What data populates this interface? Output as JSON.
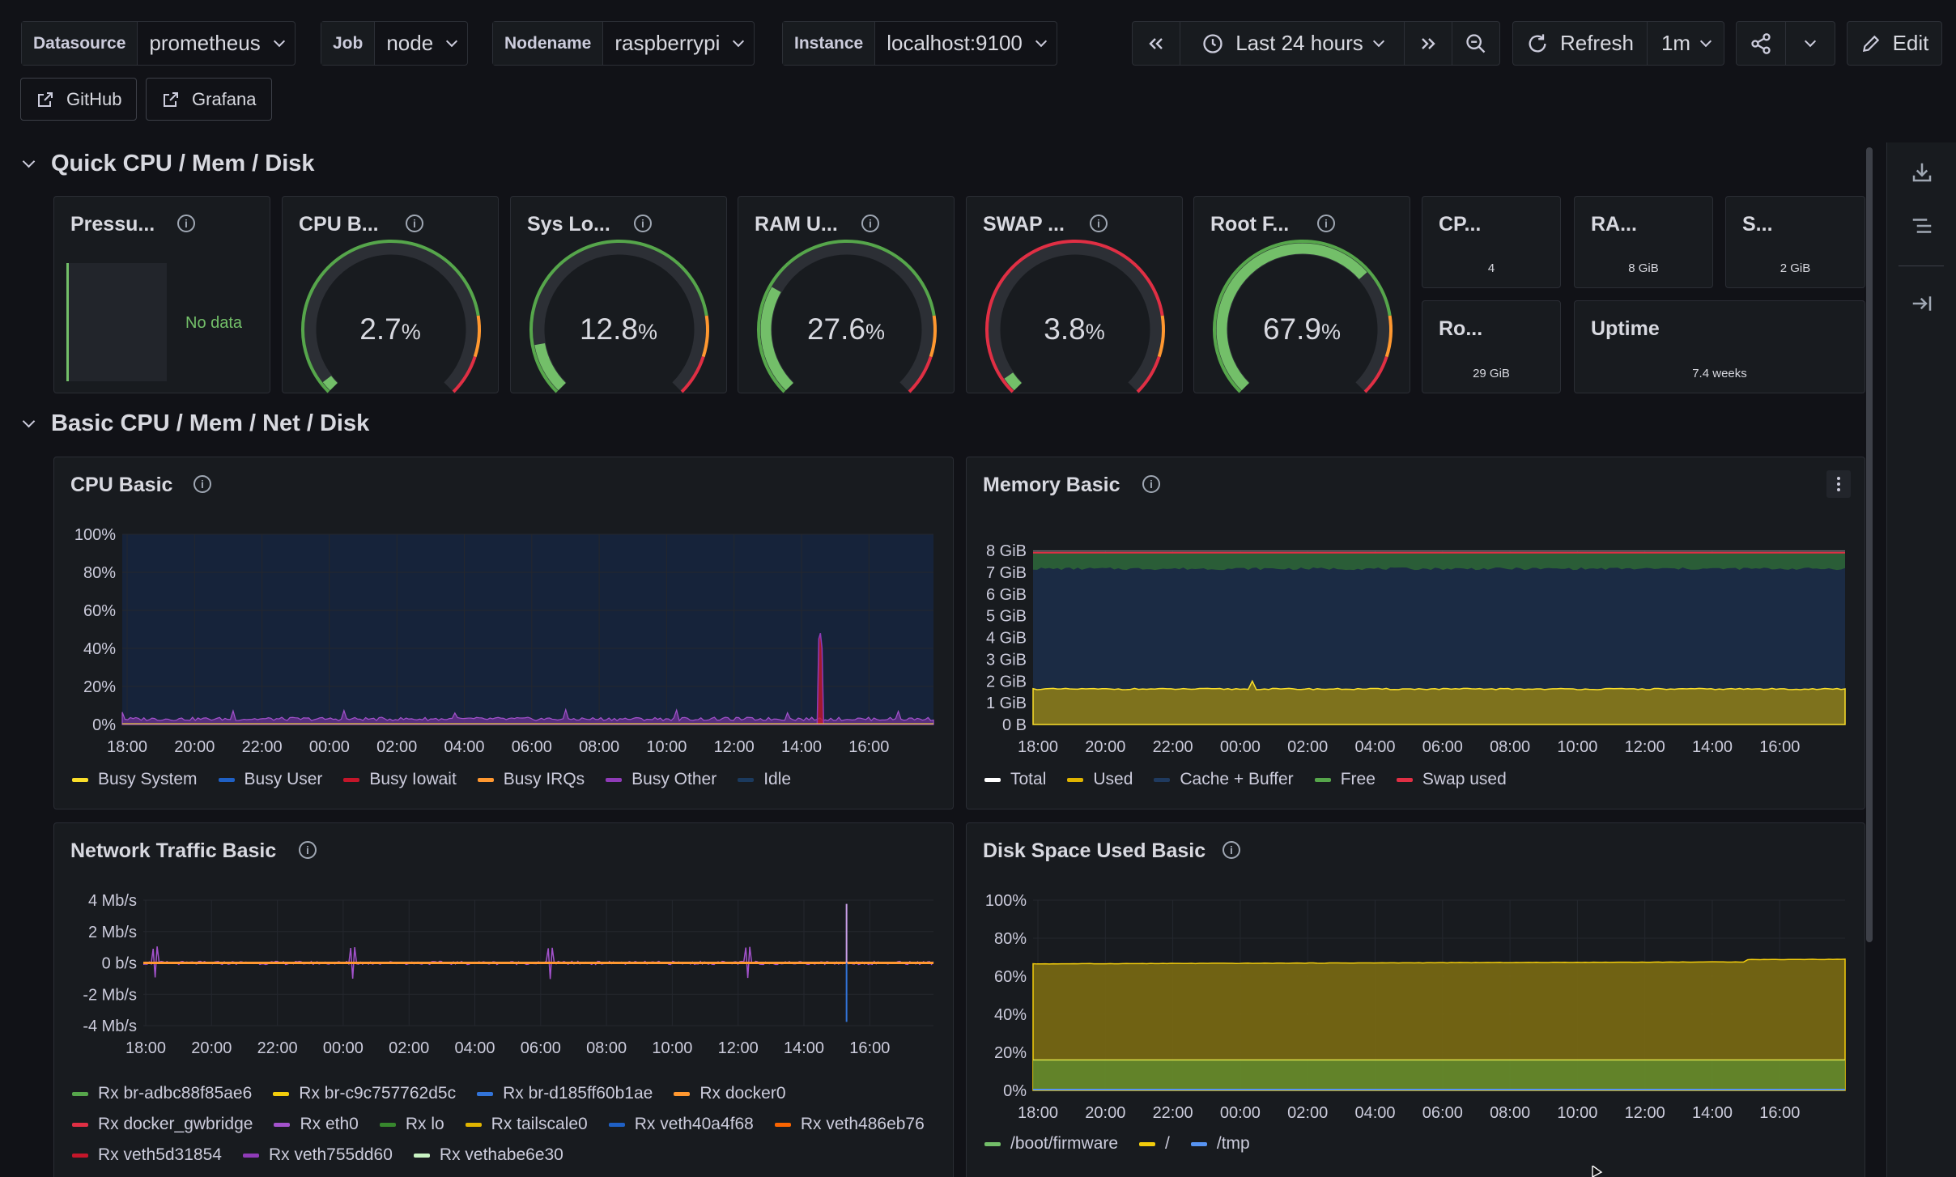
{
  "variables": [
    {
      "label": "Datasource",
      "value": "prometheus"
    },
    {
      "label": "Job",
      "value": "node"
    },
    {
      "label": "Nodename",
      "value": "raspberrypi"
    },
    {
      "label": "Instance",
      "value": "localhost:9100"
    }
  ],
  "toolbar": {
    "time_range": "Last 24 hours",
    "refresh_label": "Refresh",
    "refresh_interval": "1m",
    "edit_label": "Edit"
  },
  "links": [
    {
      "label": "GitHub"
    },
    {
      "label": "Grafana"
    }
  ],
  "rows": {
    "quick": "Quick CPU / Mem / Disk",
    "basic": "Basic CPU / Mem / Net / Disk"
  },
  "quick_panels": {
    "pressure": {
      "title": "Pressu...",
      "no_data": "No data"
    },
    "gauges": [
      {
        "title": "CPU B...",
        "value": "2.7",
        "unit": "%",
        "level": 0.027
      },
      {
        "title": "Sys Lo...",
        "value": "12.8",
        "unit": "%",
        "level": 0.128
      },
      {
        "title": "RAM U...",
        "value": "27.6",
        "unit": "%",
        "level": 0.276
      },
      {
        "title": "SWAP ...",
        "value": "3.8",
        "unit": "%",
        "level": 0.038
      },
      {
        "title": "Root F...",
        "value": "67.9",
        "unit": "%",
        "level": 0.679
      }
    ],
    "stats": [
      {
        "title": "CP...",
        "value": "4"
      },
      {
        "title": "RA...",
        "value": "8 GiB"
      },
      {
        "title": "S...",
        "value": "2 GiB"
      },
      {
        "title": "Ro...",
        "value": "29 GiB"
      },
      {
        "title": "Uptime",
        "value": "7.4 weeks"
      }
    ]
  },
  "panels": {
    "cpu": {
      "title": "CPU Basic"
    },
    "memory": {
      "title": "Memory Basic"
    },
    "network": {
      "title": "Network Traffic Basic"
    },
    "disk": {
      "title": "Disk Space Used Basic"
    }
  },
  "chart_data": [
    {
      "type": "area",
      "title": "CPU Basic",
      "x_ticks": [
        "18:00",
        "20:00",
        "22:00",
        "00:00",
        "02:00",
        "04:00",
        "06:00",
        "08:00",
        "10:00",
        "12:00",
        "14:00",
        "16:00"
      ],
      "y_ticks": [
        "0%",
        "20%",
        "40%",
        "60%",
        "80%",
        "100%"
      ],
      "ylim": [
        0,
        100
      ],
      "series": [
        {
          "name": "Busy System",
          "color": "#fade2a"
        },
        {
          "name": "Busy User",
          "color": "#1f60c4"
        },
        {
          "name": "Busy Iowait",
          "color": "#c4162a"
        },
        {
          "name": "Busy IRQs",
          "color": "#ff9830"
        },
        {
          "name": "Busy Other",
          "color": "#8f3bb8"
        },
        {
          "name": "Idle",
          "color": "#1b3a5e"
        }
      ],
      "spike_time": "15:25",
      "spike_value": 45
    },
    {
      "type": "area",
      "title": "Memory Basic",
      "x_ticks": [
        "18:00",
        "20:00",
        "22:00",
        "00:00",
        "02:00",
        "04:00",
        "06:00",
        "08:00",
        "10:00",
        "12:00",
        "14:00",
        "16:00"
      ],
      "y_ticks": [
        "0 B",
        "1 GiB",
        "2 GiB",
        "3 GiB",
        "4 GiB",
        "5 GiB",
        "6 GiB",
        "7 GiB",
        "8 GiB"
      ],
      "ylim": [
        0,
        8
      ],
      "series": [
        {
          "name": "Total",
          "color": "#ffffff",
          "value": 7.9
        },
        {
          "name": "Used",
          "color": "#e0b400",
          "value": 1.6
        },
        {
          "name": "Cache + Buffer",
          "color": "#1f3a5f",
          "value": 5.4
        },
        {
          "name": "Free",
          "color": "#56a64b",
          "value": 0.8
        },
        {
          "name": "Swap used",
          "color": "#e02f44",
          "value": 0.08
        }
      ]
    },
    {
      "type": "line",
      "title": "Network Traffic Basic",
      "x_ticks": [
        "18:00",
        "20:00",
        "22:00",
        "00:00",
        "02:00",
        "04:00",
        "06:00",
        "08:00",
        "10:00",
        "12:00",
        "14:00",
        "16:00"
      ],
      "y_ticks": [
        "-4 Mb/s",
        "-2 Mb/s",
        "0 b/s",
        "2 Mb/s",
        "4 Mb/s"
      ],
      "ylim": [
        -5,
        5
      ],
      "series": [
        {
          "name": "Rx br-adbc88f85ae6",
          "color": "#56a64b"
        },
        {
          "name": "Rx br-c9c757762d5c",
          "color": "#f2cc0c"
        },
        {
          "name": "Rx br-d185ff60b1ae",
          "color": "#3274d9"
        },
        {
          "name": "Rx docker0",
          "color": "#ff9830"
        },
        {
          "name": "Rx docker_gwbridge",
          "color": "#e02f44"
        },
        {
          "name": "Rx eth0",
          "color": "#a352cc"
        },
        {
          "name": "Rx lo",
          "color": "#37872d"
        },
        {
          "name": "Rx tailscale0",
          "color": "#e0b400"
        },
        {
          "name": "Rx veth40a4f68",
          "color": "#1f60c4"
        },
        {
          "name": "Rx veth486eb76",
          "color": "#fa6400"
        },
        {
          "name": "Rx veth5d31854",
          "color": "#c4162a"
        },
        {
          "name": "Rx veth755dd60",
          "color": "#8f3bb8"
        },
        {
          "name": "Rx vethabe6e30",
          "color": "#c8f2c2"
        }
      ]
    },
    {
      "type": "area",
      "title": "Disk Space Used Basic",
      "x_ticks": [
        "18:00",
        "20:00",
        "22:00",
        "00:00",
        "02:00",
        "04:00",
        "06:00",
        "08:00",
        "10:00",
        "12:00",
        "14:00",
        "16:00"
      ],
      "y_ticks": [
        "0%",
        "20%",
        "40%",
        "60%",
        "80%",
        "100%"
      ],
      "ylim": [
        0,
        100
      ],
      "series": [
        {
          "name": "/boot/firmware",
          "color": "#73bf69",
          "value": 16
        },
        {
          "name": "/",
          "color": "#f2cc0c",
          "value": 67
        },
        {
          "name": "/tmp",
          "color": "#5794f2",
          "value": 0.5
        }
      ]
    }
  ]
}
